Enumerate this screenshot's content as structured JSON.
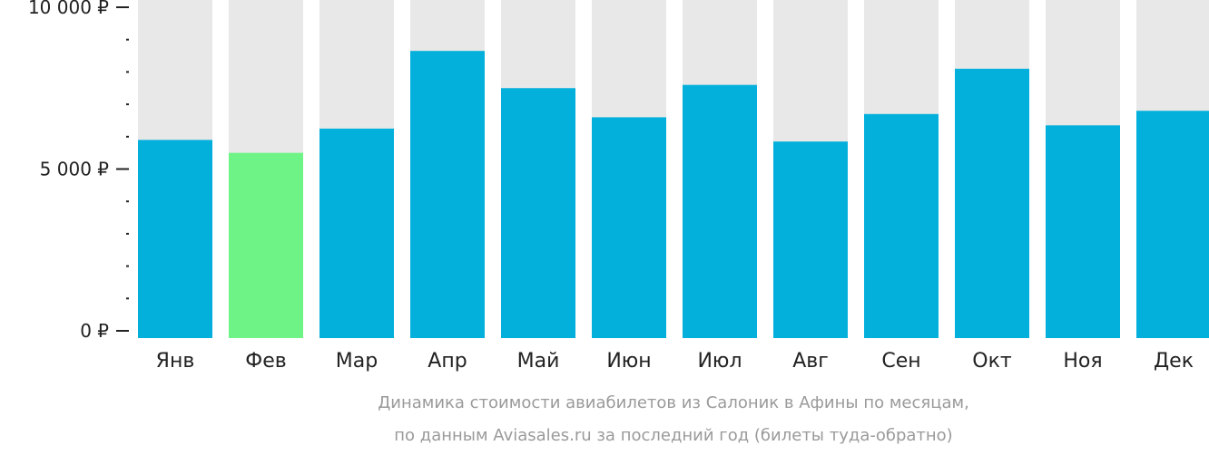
{
  "chart_data": {
    "type": "bar",
    "categories": [
      "Янв",
      "Фев",
      "Мар",
      "Апр",
      "Май",
      "Июн",
      "Июл",
      "Авг",
      "Сен",
      "Окт",
      "Ноя",
      "Дек"
    ],
    "values": [
      5900,
      5500,
      6250,
      8650,
      7500,
      6600,
      7600,
      5850,
      6700,
      8100,
      6350,
      6800
    ],
    "highlight_index": 1,
    "ylim": [
      0,
      10000
    ],
    "y_major_ticks": [
      {
        "value": 0,
        "label": "0 ₽"
      },
      {
        "value": 5000,
        "label": "5 000 ₽"
      },
      {
        "value": 10000,
        "label": "10 000 ₽"
      }
    ],
    "y_minor_step": 1000,
    "colors": {
      "bar": "#03b0dc",
      "highlight": "#6ef387",
      "background_bar": "#e8e8e8",
      "axis": "#222222"
    },
    "caption_line1": "Динамика стоимости авиабилетов из Салоник в Афины по месяцам,",
    "caption_line2": "по данным Aviasales.ru за последний год (билеты туда-обратно)",
    "grid": false,
    "legend": "none"
  }
}
